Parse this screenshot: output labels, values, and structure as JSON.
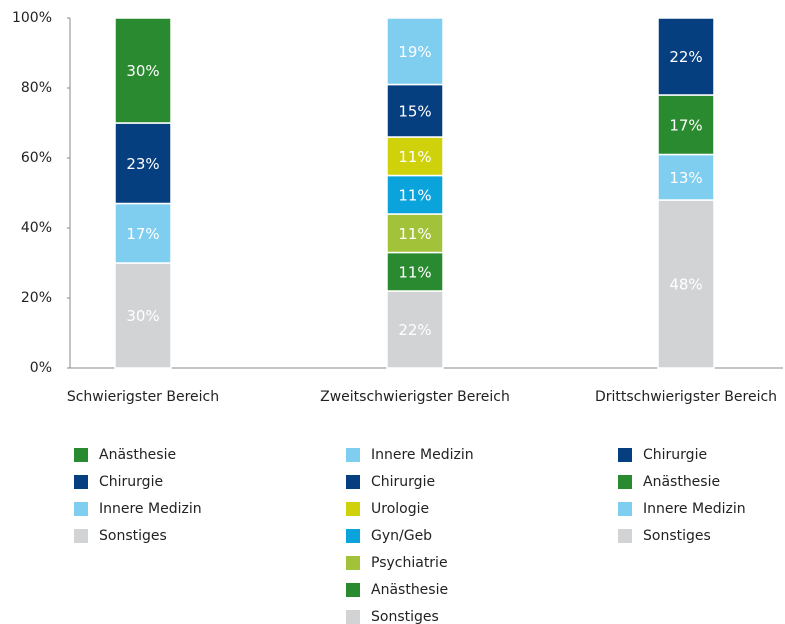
{
  "chart_data": {
    "type": "bar",
    "stacked": true,
    "ylim": [
      0,
      100
    ],
    "yticks": [
      {
        "value": 0,
        "label": "0%"
      },
      {
        "value": 20,
        "label": "20%"
      },
      {
        "value": 40,
        "label": "40%"
      },
      {
        "value": 60,
        "label": "60%"
      },
      {
        "value": 80,
        "label": "80%"
      },
      {
        "value": 100,
        "label": "100%"
      }
    ],
    "bars": [
      {
        "category": "Schwierigster Bereich",
        "segments": [
          {
            "name": "Anästhesie",
            "color": "#2a8a2f",
            "value": 30,
            "label": "30%"
          },
          {
            "name": "Chirurgie",
            "color": "#063f7f",
            "value": 23,
            "label": "23%"
          },
          {
            "name": "Innere Medizin",
            "color": "#7fcdef",
            "value": 17,
            "label": "17%"
          },
          {
            "name": "Sonstiges",
            "color": "#d2d3d5",
            "value": 30,
            "label": "30%"
          }
        ]
      },
      {
        "category": "Zweitschwierigster Bereich",
        "segments": [
          {
            "name": "Innere Medizin",
            "color": "#7fcdef",
            "value": 19,
            "label": "19%"
          },
          {
            "name": "Chirurgie",
            "color": "#063f7f",
            "value": 15,
            "label": "15%"
          },
          {
            "name": "Urologie",
            "color": "#cfd20a",
            "value": 11,
            "label": "11%"
          },
          {
            "name": "Gyn/Geb",
            "color": "#0aa3dc",
            "value": 11,
            "label": "11%"
          },
          {
            "name": "Psychiatrie",
            "color": "#a2c23a",
            "value": 11,
            "label": "11%"
          },
          {
            "name": "Anästhesie",
            "color": "#2a8a2f",
            "value": 11,
            "label": "11%"
          },
          {
            "name": "Sonstiges",
            "color": "#d2d3d5",
            "value": 22,
            "label": "22%"
          }
        ]
      },
      {
        "category": "Drittschwierigster Bereich",
        "segments": [
          {
            "name": "Chirurgie",
            "color": "#063f7f",
            "value": 22,
            "label": "22%"
          },
          {
            "name": "Anästhesie",
            "color": "#2a8a2f",
            "value": 17,
            "label": "17%"
          },
          {
            "name": "Innere Medizin",
            "color": "#7fcdef",
            "value": 13,
            "label": "13%"
          },
          {
            "name": "Sonstiges",
            "color": "#d2d3d5",
            "value": 48,
            "label": "48%"
          }
        ]
      }
    ]
  }
}
